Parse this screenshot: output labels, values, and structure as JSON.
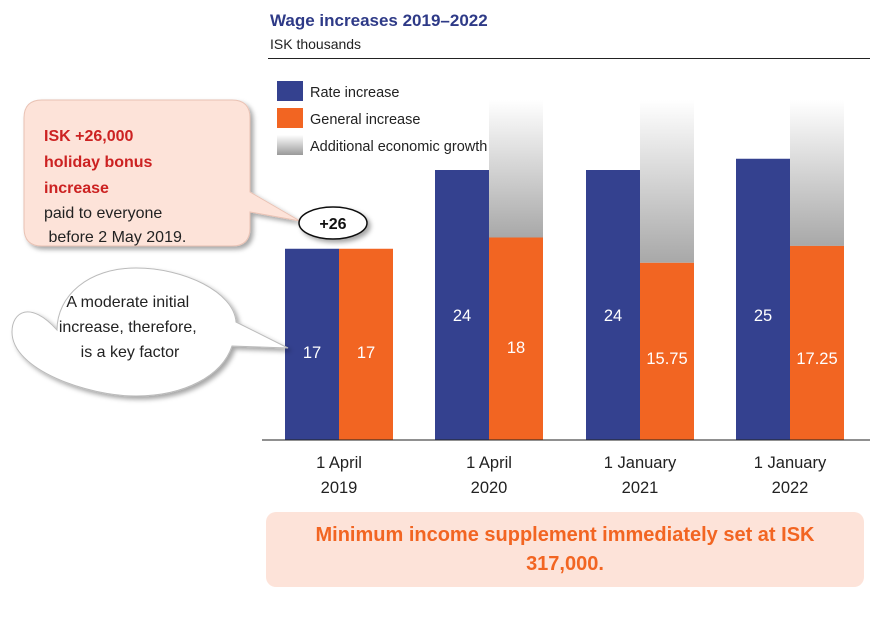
{
  "chart_data": {
    "type": "bar",
    "title": "Wage increases 2019–2022",
    "subtitle": "ISK thousands",
    "categories": [
      [
        "1 April",
        "2019"
      ],
      [
        "1 April",
        "2020"
      ],
      [
        "1 January",
        "2021"
      ],
      [
        "1 January",
        "2022"
      ]
    ],
    "series": [
      {
        "name": "Rate increase",
        "color": "#34418f",
        "values": [
          17,
          24,
          24,
          25
        ],
        "labels": [
          "17",
          "24",
          "24",
          "25"
        ]
      },
      {
        "name": "General increase",
        "color": "#f26522",
        "values": [
          17,
          18,
          15.75,
          17.25
        ],
        "labels": [
          "17",
          "18",
          "15.75",
          "17.25"
        ]
      }
    ],
    "extra_legend": "Additional economic growth",
    "ylim": [
      0,
      32
    ],
    "grid": false,
    "legend_position": "top-left"
  },
  "callouts": {
    "bonus": {
      "highlight": [
        "ISK +26,000",
        "holiday bonus",
        "increase"
      ],
      "text": [
        "paid to everyone",
        " before 2 May 2019."
      ],
      "badge": "+26"
    },
    "moderate": {
      "text": [
        "A moderate initial",
        "increase, therefore,",
        "is a key factor"
      ]
    }
  },
  "footer_box": "Minimum income supplement immediately set at ISK 317,000."
}
